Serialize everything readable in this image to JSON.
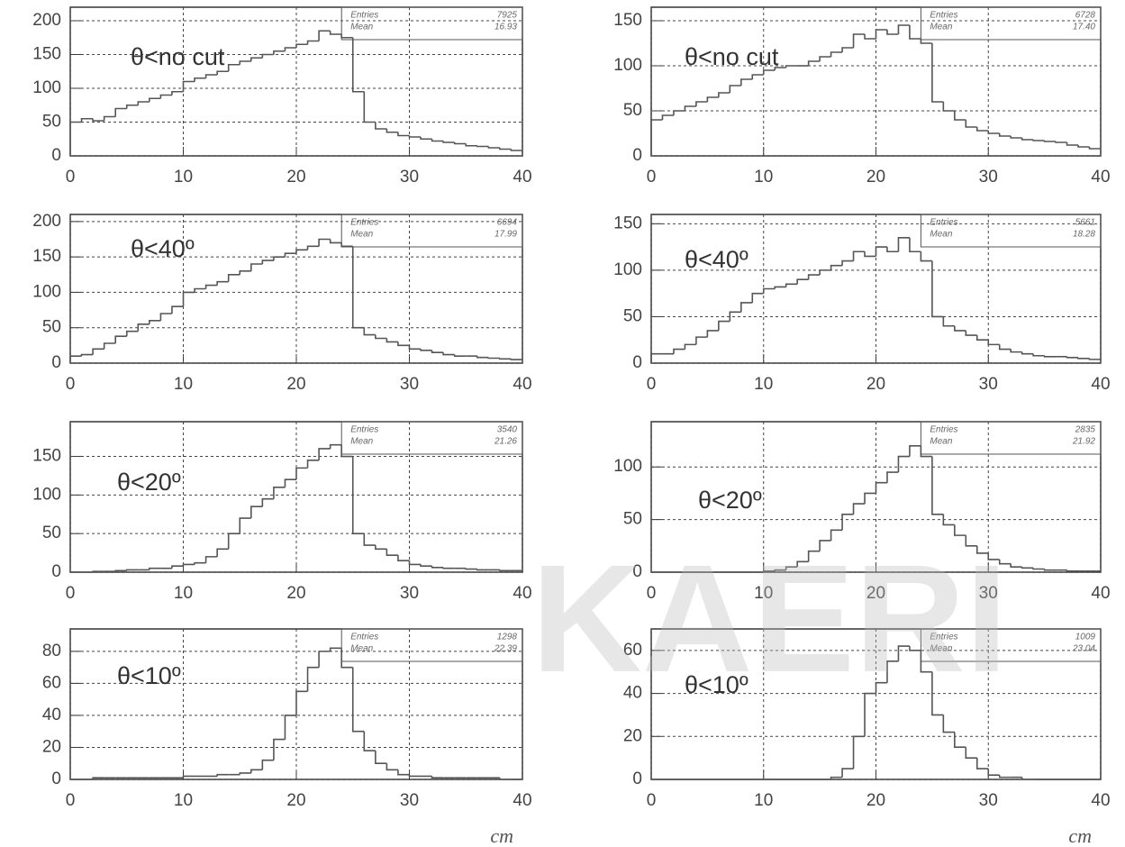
{
  "watermark": "KAERI",
  "chart_data": [
    {
      "type": "histogram",
      "annotation": "θ<no cut",
      "xlim": [
        0,
        40
      ],
      "xticks": [
        0,
        10,
        20,
        30,
        40
      ],
      "ylim": [
        0,
        220
      ],
      "yticks": [
        0,
        50,
        100,
        150,
        200
      ],
      "grid": true,
      "color": "#555555",
      "bins": [
        0,
        1,
        2,
        3,
        4,
        5,
        6,
        7,
        8,
        9,
        10,
        11,
        12,
        13,
        14,
        15,
        16,
        17,
        18,
        19,
        20,
        21,
        22,
        23,
        24,
        25,
        26,
        27,
        28,
        29,
        30,
        31,
        32,
        33,
        34,
        35,
        36,
        37,
        38,
        39,
        40
      ],
      "values": [
        50,
        55,
        52,
        58,
        70,
        75,
        80,
        85,
        90,
        95,
        110,
        115,
        120,
        125,
        135,
        140,
        145,
        150,
        155,
        160,
        165,
        170,
        185,
        180,
        175,
        95,
        50,
        40,
        35,
        30,
        28,
        25,
        22,
        20,
        18,
        15,
        14,
        12,
        10,
        8
      ],
      "stats": [
        {
          "label": "Entries",
          "text": "7925"
        },
        {
          "label": "Mean",
          "text": "16.93"
        }
      ]
    },
    {
      "type": "histogram",
      "annotation": "θ<no cut",
      "xlim": [
        0,
        40
      ],
      "xticks": [
        0,
        10,
        20,
        30,
        40
      ],
      "ylim": [
        0,
        165
      ],
      "yticks": [
        0,
        50,
        100,
        150
      ],
      "grid": true,
      "color": "#555555",
      "bins": [
        0,
        1,
        2,
        3,
        4,
        5,
        6,
        7,
        8,
        9,
        10,
        11,
        12,
        13,
        14,
        15,
        16,
        17,
        18,
        19,
        20,
        21,
        22,
        23,
        24,
        25,
        26,
        27,
        28,
        29,
        30,
        31,
        32,
        33,
        34,
        35,
        36,
        37,
        38,
        39,
        40
      ],
      "values": [
        40,
        45,
        50,
        55,
        60,
        65,
        70,
        78,
        85,
        90,
        95,
        98,
        100,
        100,
        105,
        110,
        115,
        120,
        135,
        130,
        140,
        135,
        145,
        130,
        125,
        60,
        50,
        40,
        32,
        28,
        25,
        22,
        20,
        18,
        17,
        16,
        15,
        12,
        10,
        8
      ],
      "stats": [
        {
          "label": "Entries",
          "text": "6728"
        },
        {
          "label": "Mean",
          "text": "17.40"
        }
      ]
    },
    {
      "type": "histogram",
      "annotation": "θ<40º",
      "xlim": [
        0,
        40
      ],
      "xticks": [
        0,
        10,
        20,
        30,
        40
      ],
      "ylim": [
        0,
        210
      ],
      "yticks": [
        0,
        50,
        100,
        150,
        200
      ],
      "grid": true,
      "color": "#555555",
      "bins": [
        0,
        1,
        2,
        3,
        4,
        5,
        6,
        7,
        8,
        9,
        10,
        11,
        12,
        13,
        14,
        15,
        16,
        17,
        18,
        19,
        20,
        21,
        22,
        23,
        24,
        25,
        26,
        27,
        28,
        29,
        30,
        31,
        32,
        33,
        34,
        35,
        36,
        37,
        38,
        39,
        40
      ],
      "values": [
        10,
        12,
        20,
        28,
        38,
        45,
        55,
        60,
        70,
        80,
        100,
        105,
        110,
        115,
        125,
        130,
        140,
        145,
        150,
        155,
        160,
        165,
        175,
        170,
        165,
        50,
        40,
        35,
        30,
        25,
        20,
        18,
        15,
        12,
        10,
        10,
        8,
        7,
        6,
        5
      ],
      "stats": [
        {
          "label": "Entries",
          "text": "6694"
        },
        {
          "label": "Mean",
          "text": "17.99"
        }
      ]
    },
    {
      "type": "histogram",
      "annotation": "θ<40º",
      "xlim": [
        0,
        40
      ],
      "xticks": [
        0,
        10,
        20,
        30,
        40
      ],
      "ylim": [
        0,
        160
      ],
      "yticks": [
        0,
        50,
        100,
        150
      ],
      "grid": true,
      "color": "#555555",
      "bins": [
        0,
        1,
        2,
        3,
        4,
        5,
        6,
        7,
        8,
        9,
        10,
        11,
        12,
        13,
        14,
        15,
        16,
        17,
        18,
        19,
        20,
        21,
        22,
        23,
        24,
        25,
        26,
        27,
        28,
        29,
        30,
        31,
        32,
        33,
        34,
        35,
        36,
        37,
        38,
        39,
        40
      ],
      "values": [
        10,
        10,
        15,
        20,
        28,
        35,
        45,
        55,
        65,
        75,
        80,
        82,
        85,
        90,
        95,
        100,
        105,
        110,
        120,
        115,
        125,
        120,
        135,
        120,
        110,
        50,
        40,
        35,
        30,
        25,
        20,
        15,
        12,
        10,
        8,
        7,
        7,
        6,
        5,
        4
      ],
      "stats": [
        {
          "label": "Entries",
          "text": "5661"
        },
        {
          "label": "Mean",
          "text": "18.28"
        }
      ]
    },
    {
      "type": "histogram",
      "annotation": "θ<20º",
      "xlim": [
        0,
        40
      ],
      "xticks": [
        0,
        10,
        20,
        30,
        40
      ],
      "ylim": [
        0,
        195
      ],
      "yticks": [
        0,
        50,
        100,
        150
      ],
      "grid": true,
      "color": "#555555",
      "bins": [
        0,
        1,
        2,
        3,
        4,
        5,
        6,
        7,
        8,
        9,
        10,
        11,
        12,
        13,
        14,
        15,
        16,
        17,
        18,
        19,
        20,
        21,
        22,
        23,
        24,
        25,
        26,
        27,
        28,
        29,
        30,
        31,
        32,
        33,
        34,
        35,
        36,
        37,
        38,
        39,
        40
      ],
      "values": [
        0,
        0,
        1,
        1,
        2,
        3,
        3,
        5,
        5,
        8,
        10,
        12,
        20,
        30,
        50,
        70,
        85,
        95,
        110,
        120,
        135,
        145,
        160,
        165,
        150,
        50,
        35,
        30,
        22,
        15,
        10,
        8,
        6,
        5,
        5,
        4,
        3,
        3,
        2,
        2
      ],
      "stats": [
        {
          "label": "Entries",
          "text": "3540"
        },
        {
          "label": "Mean",
          "text": "21.26"
        }
      ]
    },
    {
      "type": "histogram",
      "annotation": "θ<20º",
      "xlim": [
        0,
        40
      ],
      "xticks": [
        0,
        10,
        20,
        30,
        40
      ],
      "ylim": [
        0,
        143
      ],
      "yticks": [
        0,
        50,
        100
      ],
      "grid": true,
      "color": "#555555",
      "bins": [
        0,
        1,
        2,
        3,
        4,
        5,
        6,
        7,
        8,
        9,
        10,
        11,
        12,
        13,
        14,
        15,
        16,
        17,
        18,
        19,
        20,
        21,
        22,
        23,
        24,
        25,
        26,
        27,
        28,
        29,
        30,
        31,
        32,
        33,
        34,
        35,
        36,
        37,
        38,
        39,
        40
      ],
      "values": [
        0,
        0,
        0,
        0,
        0,
        0,
        0,
        0,
        0,
        0,
        1,
        2,
        5,
        10,
        20,
        30,
        40,
        55,
        65,
        75,
        85,
        95,
        110,
        120,
        110,
        55,
        45,
        35,
        25,
        18,
        12,
        8,
        5,
        4,
        3,
        2,
        2,
        1,
        1,
        1
      ],
      "stats": [
        {
          "label": "Entries",
          "text": "2835"
        },
        {
          "label": "Mean",
          "text": "21.92"
        }
      ]
    },
    {
      "type": "histogram",
      "annotation": "θ<10º",
      "xlabel": "cm",
      "xlim": [
        0,
        40
      ],
      "xticks": [
        0,
        10,
        20,
        30,
        40
      ],
      "ylim": [
        0,
        94
      ],
      "yticks": [
        0,
        20,
        40,
        60,
        80
      ],
      "grid": true,
      "color": "#555555",
      "bins": [
        0,
        1,
        2,
        3,
        4,
        5,
        6,
        7,
        8,
        9,
        10,
        11,
        12,
        13,
        14,
        15,
        16,
        17,
        18,
        19,
        20,
        21,
        22,
        23,
        24,
        25,
        26,
        27,
        28,
        29,
        30,
        31,
        32,
        33,
        34,
        35,
        36,
        37,
        38,
        39,
        40
      ],
      "values": [
        0,
        0,
        1,
        1,
        1,
        1,
        1,
        1,
        1,
        1,
        2,
        2,
        2,
        3,
        3,
        4,
        6,
        12,
        25,
        40,
        55,
        70,
        80,
        82,
        70,
        30,
        18,
        10,
        6,
        3,
        2,
        2,
        1,
        1,
        1,
        1,
        1,
        1,
        0,
        0
      ],
      "stats": [
        {
          "label": "Entries",
          "text": "1298"
        },
        {
          "label": "Mean",
          "text": "22.39"
        }
      ]
    },
    {
      "type": "histogram",
      "annotation": "θ<10º",
      "xlabel": "cm",
      "xlim": [
        0,
        40
      ],
      "xticks": [
        0,
        10,
        20,
        30,
        40
      ],
      "ylim": [
        0,
        70
      ],
      "yticks": [
        0,
        20,
        40,
        60
      ],
      "grid": true,
      "color": "#555555",
      "bins": [
        0,
        1,
        2,
        3,
        4,
        5,
        6,
        7,
        8,
        9,
        10,
        11,
        12,
        13,
        14,
        15,
        16,
        17,
        18,
        19,
        20,
        21,
        22,
        23,
        24,
        25,
        26,
        27,
        28,
        29,
        30,
        31,
        32,
        33,
        34,
        35,
        36,
        37,
        38,
        39,
        40
      ],
      "values": [
        0,
        0,
        0,
        0,
        0,
        0,
        0,
        0,
        0,
        0,
        0,
        0,
        0,
        0,
        0,
        0,
        1,
        5,
        20,
        40,
        45,
        55,
        62,
        60,
        50,
        30,
        22,
        15,
        10,
        5,
        2,
        1,
        1,
        0,
        0,
        0,
        0,
        0,
        0,
        0
      ],
      "stats": [
        {
          "label": "Entries",
          "text": "1009"
        },
        {
          "label": "Mean",
          "text": "23.04"
        }
      ]
    }
  ]
}
